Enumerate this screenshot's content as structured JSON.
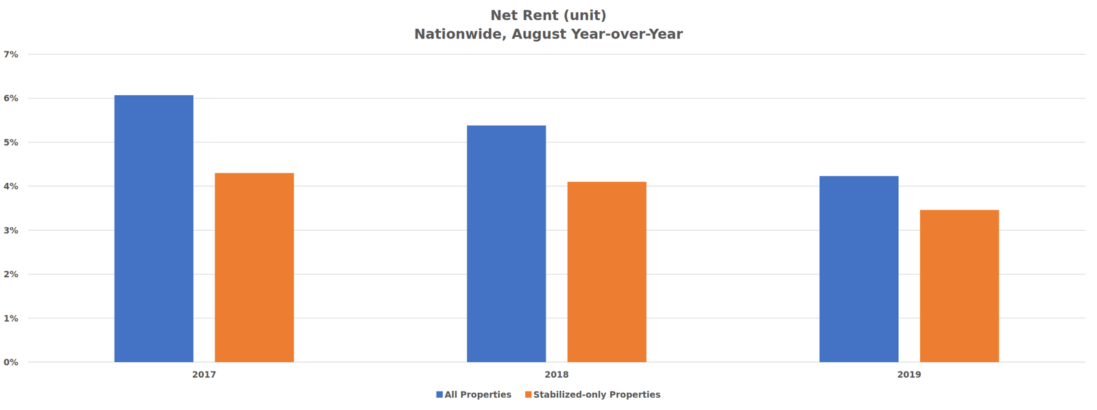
{
  "chart_data": {
    "type": "bar",
    "title": "Net Rent (unit)",
    "subtitle": "Nationwide, August Year-over-Year",
    "categories": [
      "2017",
      "2018",
      "2019"
    ],
    "series": [
      {
        "name": "All Properties",
        "color": "#4472c4",
        "values": [
          6.07,
          5.38,
          4.23
        ]
      },
      {
        "name": "Stabilized-only Properties",
        "color": "#ed7d31",
        "values": [
          4.3,
          4.1,
          3.46
        ]
      }
    ],
    "ylim": [
      0,
      7
    ],
    "yticks": [
      {
        "value": 0,
        "label": "0%"
      },
      {
        "value": 1,
        "label": "1%"
      },
      {
        "value": 2,
        "label": "2%"
      },
      {
        "value": 3,
        "label": "3%"
      },
      {
        "value": 4,
        "label": "4%"
      },
      {
        "value": 5,
        "label": "5%"
      },
      {
        "value": 6,
        "label": "6%"
      },
      {
        "value": 7,
        "label": "7%"
      }
    ],
    "grid": true,
    "legend": "bottom"
  }
}
